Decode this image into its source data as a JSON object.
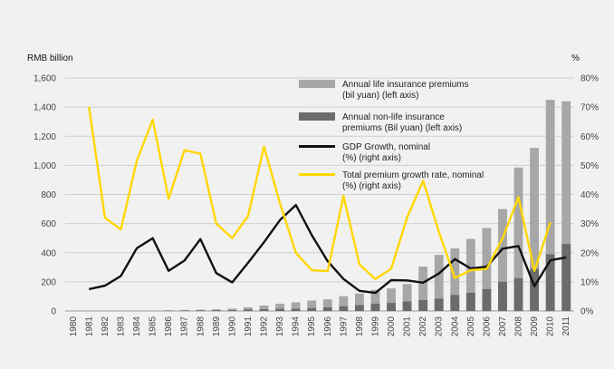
{
  "chart_data": {
    "type": "bar",
    "categories": [
      "1980",
      "1981",
      "1982",
      "1983",
      "1984",
      "1985",
      "1986",
      "1987",
      "1988",
      "1989",
      "1990",
      "1991",
      "1992",
      "1993",
      "1994",
      "1995",
      "1996",
      "1997",
      "1998",
      "1999",
      "2000",
      "2001",
      "2002",
      "2003",
      "2004",
      "2005",
      "2006",
      "2007",
      "2008",
      "2009",
      "2010",
      "2011"
    ],
    "ylabel_left": "RMB billion",
    "ylabel_right": "%",
    "ylim_left": [
      0,
      1600
    ],
    "ylim_right": [
      0,
      80
    ],
    "yticks_left": [
      "0",
      "200",
      "400",
      "600",
      "800",
      "1,000",
      "1,200",
      "1,400",
      "1,600"
    ],
    "yticks_right": [
      "0%",
      "10%",
      "20%",
      "30%",
      "40%",
      "50%",
      "60%",
      "70%",
      "80%"
    ],
    "grid": true,
    "legend_position": "top-center",
    "series": [
      {
        "name": "Annual life insurance premiums (bil yuan) (left axis)",
        "legend_lines": [
          "Annual life insurance premiums",
          "(bil yuan) (left axis)"
        ],
        "type": "bar",
        "axis": "left",
        "color": "#a7a7a7",
        "values": [
          0,
          0,
          1,
          1,
          1,
          2,
          3,
          4,
          5,
          7,
          10,
          15,
          25,
          35,
          45,
          52,
          55,
          70,
          80,
          95,
          100,
          120,
          230,
          300,
          320,
          370,
          420,
          500,
          760,
          830,
          1060,
          980
        ]
      },
      {
        "name": "Annual non-life insurance premiums (Bil yuan) (left axis)",
        "legend_lines": [
          "Annual non-life insurance",
          "premiums (Bil yuan) (left axis)"
        ],
        "type": "bar",
        "axis": "left",
        "color": "#6b6b6b",
        "values": [
          0,
          0,
          0,
          0,
          1,
          1,
          2,
          3,
          4,
          5,
          6,
          10,
          12,
          15,
          15,
          20,
          25,
          32,
          40,
          50,
          55,
          65,
          75,
          85,
          110,
          125,
          150,
          200,
          225,
          290,
          390,
          460
        ]
      },
      {
        "name": "GDP Growth, nominal (%) (right axis)",
        "legend_lines": [
          "GDP Growth, nominal",
          "(%) (right axis)"
        ],
        "type": "line",
        "axis": "right",
        "color": "#111111",
        "values": [
          null,
          7.5,
          8.7,
          12,
          21.5,
          25,
          13.8,
          17.3,
          24.7,
          13,
          9.8,
          16.6,
          23.6,
          31.2,
          36.4,
          26.1,
          17.1,
          11,
          6.9,
          6.2,
          10.6,
          10.5,
          9.7,
          12.9,
          17.8,
          14.6,
          15.2,
          21.4,
          22.3,
          8.5,
          17.4,
          18.4
        ]
      },
      {
        "name": "Total premium growth rate, nominal (%) (right axis)",
        "legend_lines": [
          "Total premium growth rate, nominal",
          "(%) (right axis)"
        ],
        "type": "line",
        "axis": "right",
        "color": "#ffd700",
        "values": [
          null,
          70,
          32,
          28,
          51.5,
          65.7,
          38.5,
          55.2,
          54,
          30,
          25,
          32.7,
          56.4,
          37,
          20,
          14,
          13.7,
          39.5,
          16,
          11,
          14.5,
          32.2,
          44.7,
          27.1,
          11.3,
          14,
          14.4,
          25,
          39.1,
          13.8,
          30.4,
          null
        ]
      }
    ]
  }
}
